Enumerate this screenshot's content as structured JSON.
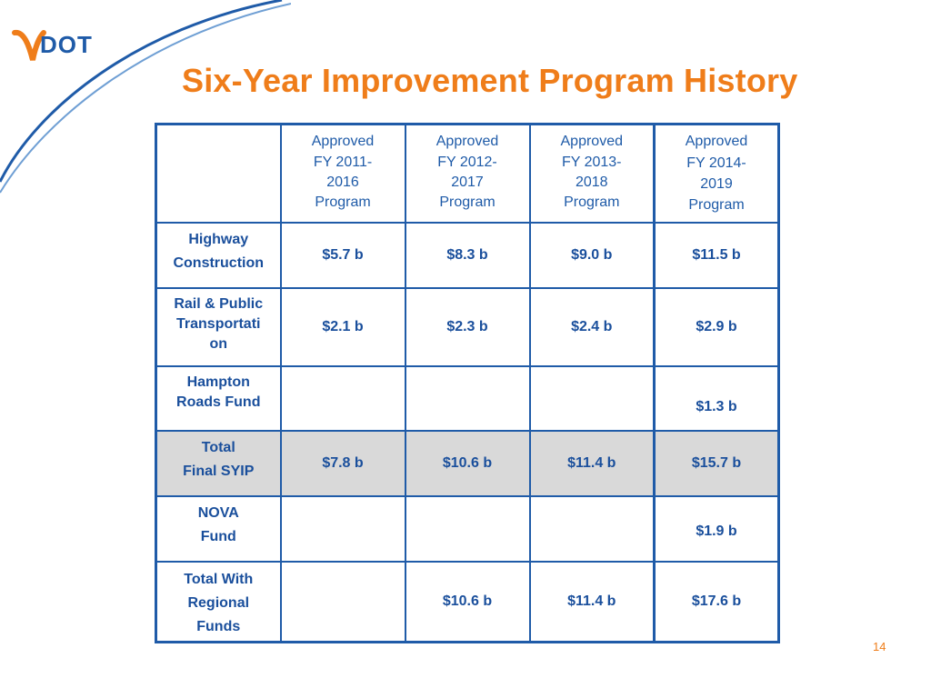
{
  "logo": {
    "text": "VDOT"
  },
  "title": "Six-Year Improvement Program History",
  "table": {
    "header": [
      "",
      [
        "Approved",
        "FY 2011-",
        "2016",
        "Program"
      ],
      [
        "Approved",
        "FY 2012-",
        "2017",
        "Program"
      ],
      [
        "Approved",
        "FY 2013-",
        "2018",
        "Program"
      ],
      [
        "Approved",
        "FY 2014-",
        "2019",
        "Program"
      ]
    ],
    "rows": [
      {
        "label": [
          "Highway",
          "Construction"
        ],
        "values": [
          "$5.7 b",
          "$8.3 b",
          "$9.0 b",
          "$11.5 b"
        ]
      },
      {
        "label": [
          "Rail & Public",
          "Transportati",
          "on"
        ],
        "values": [
          "$2.1 b",
          "$2.3 b",
          "$2.4 b",
          "$2.9 b"
        ]
      },
      {
        "label": [
          "Hampton",
          "Roads Fund"
        ],
        "values": [
          "",
          "",
          "",
          "$1.3 b"
        ]
      },
      {
        "label": [
          "Total",
          "Final SYIP"
        ],
        "values": [
          "$7.8 b",
          "$10.6 b",
          "$11.4 b",
          "$15.7 b"
        ]
      },
      {
        "label": [
          "NOVA",
          "Fund"
        ],
        "values": [
          "",
          "",
          "",
          "$1.9 b"
        ]
      },
      {
        "label": [
          "Total With",
          "Regional",
          "Funds"
        ],
        "values": [
          "",
          "$10.6 b",
          "$11.4 b",
          "$17.6 b"
        ]
      }
    ]
  },
  "page_number": "14",
  "colors": {
    "title": "#ef7d1a",
    "table_text": "#1a4f9c",
    "border": "#1f5ba8",
    "shaded_row": "#d9d9d9",
    "logo_orange": "#ef7d1a",
    "logo_blue": "#1f5ba8"
  }
}
